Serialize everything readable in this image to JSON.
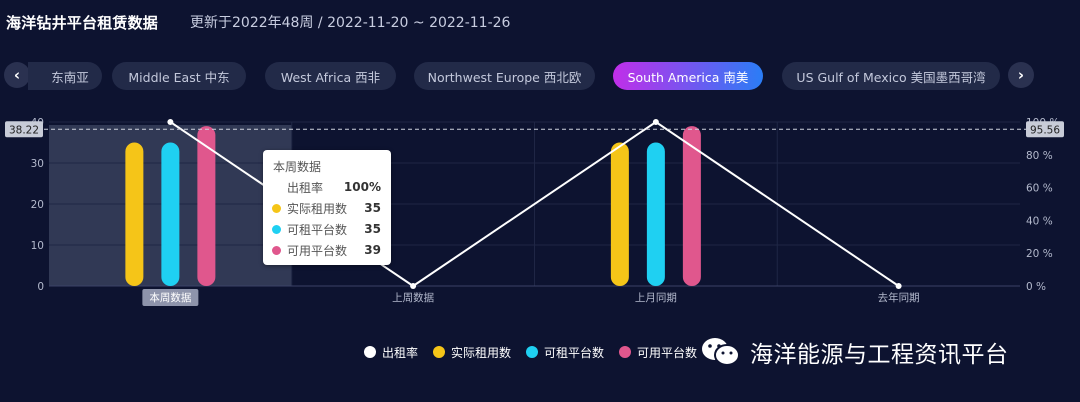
{
  "header": {
    "title": "海洋钻井平台租赁数据",
    "subtitle": "更新于2022年48周 / 2022-11-20 ~ 2022-11-26"
  },
  "tabs": [
    {
      "label": "东南亚",
      "active": false
    },
    {
      "label": "Middle East  中东",
      "active": false
    },
    {
      "label": "West Africa  西非",
      "active": false
    },
    {
      "label": "Northwest Europe  西北欧",
      "active": false
    },
    {
      "label": "South America  南美",
      "active": true
    },
    {
      "label": "US Gulf of Mexico  美国墨西哥湾",
      "active": false
    }
  ],
  "nav": {
    "prev_icon": "chevron-left-icon",
    "next_icon": "chevron-right-icon"
  },
  "chart_data": {
    "type": "bar",
    "categories": [
      "本周数据",
      "上周数据",
      "上月同期",
      "去年同期"
    ],
    "series": [
      {
        "name": "实际租用数",
        "color": "#f5c518",
        "axis": "left",
        "values": [
          35,
          0,
          35,
          0
        ]
      },
      {
        "name": "可租平台数",
        "color": "#1fd0f2",
        "axis": "left",
        "values": [
          35,
          0,
          35,
          0
        ]
      },
      {
        "name": "可用平台数",
        "color": "#e0578d",
        "axis": "left",
        "values": [
          39,
          0,
          39,
          0
        ]
      },
      {
        "name": "出租率",
        "color": "#ffffff",
        "type": "line",
        "axis": "right",
        "values": [
          100,
          0,
          100,
          0
        ]
      }
    ],
    "y_left": {
      "range": [
        0,
        40
      ],
      "ticks": [
        "0",
        "10",
        "20",
        "30",
        "40"
      ]
    },
    "y_right": {
      "range": [
        0,
        100
      ],
      "ticks": [
        "0 %",
        "20 %",
        "40 %",
        "60 %",
        "80 %",
        "100 %"
      ]
    },
    "reference_line": {
      "left_label": "38.22",
      "right_label": "95.56"
    },
    "highlighted_category": "本周数据",
    "legend_position": "bottom"
  },
  "tooltip": {
    "title": "本周数据",
    "rows": [
      {
        "label": "出租率",
        "value": "100%",
        "color": null
      },
      {
        "label": "实际租用数",
        "value": "35",
        "color": "#f5c518"
      },
      {
        "label": "可租平台数",
        "value": "35",
        "color": "#1fd0f2"
      },
      {
        "label": "可用平台数",
        "value": "39",
        "color": "#e0578d"
      }
    ]
  },
  "legend": [
    {
      "label": "出租率",
      "color": "#ffffff"
    },
    {
      "label": "实际租用数",
      "color": "#f5c518"
    },
    {
      "label": "可租平台数",
      "color": "#1fd0f2"
    },
    {
      "label": "可用平台数",
      "color": "#e0578d"
    }
  ],
  "watermark": {
    "text": "海洋能源与工程资讯平台",
    "icon": "wechat-icon"
  },
  "colors": {
    "background": "#0d1330",
    "tab_bg": "#222a48",
    "tab_active_start": "#c12ee9",
    "tab_active_end": "#2a7df6"
  }
}
